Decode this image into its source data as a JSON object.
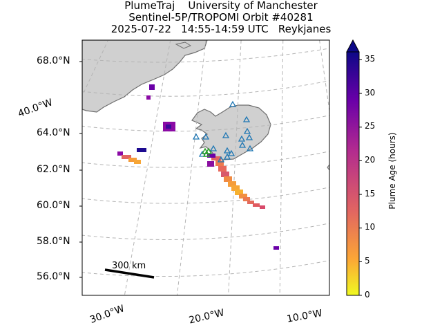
{
  "title": {
    "line1": "PlumeTraj    University of Manchester",
    "line2": "Sentinel-5P/TROPOMI Orbit #40281",
    "line3": "2025-07-22   14:55-14:59 UTC   Reykjanes"
  },
  "lat_labels": [
    "68.0°N",
    "64.0°N",
    "62.0°N",
    "60.0°N",
    "58.0°N",
    "56.0°N"
  ],
  "lon_labels": [
    "40.0°W",
    "30.0°W",
    "20.0°W",
    "10.0°W"
  ],
  "colorbar": {
    "label": "Plume Age (hours)",
    "ticks": [
      "0",
      "5",
      "10",
      "15",
      "20",
      "25",
      "30",
      "35"
    ],
    "colormap": "plasma_r",
    "extend": "max",
    "colors": [
      "#f0f921",
      "#fca636",
      "#e16462",
      "#b12a90",
      "#6a00a8",
      "#0d0887"
    ]
  },
  "scale_bar": {
    "label": "300 km"
  },
  "colors": {
    "land": "#d0d0d0",
    "coast": "#6e6e6e",
    "grid": "#b4b4b4",
    "volcano_triangles": "#1f77b4",
    "active_volcano": "#2ca02c"
  }
}
